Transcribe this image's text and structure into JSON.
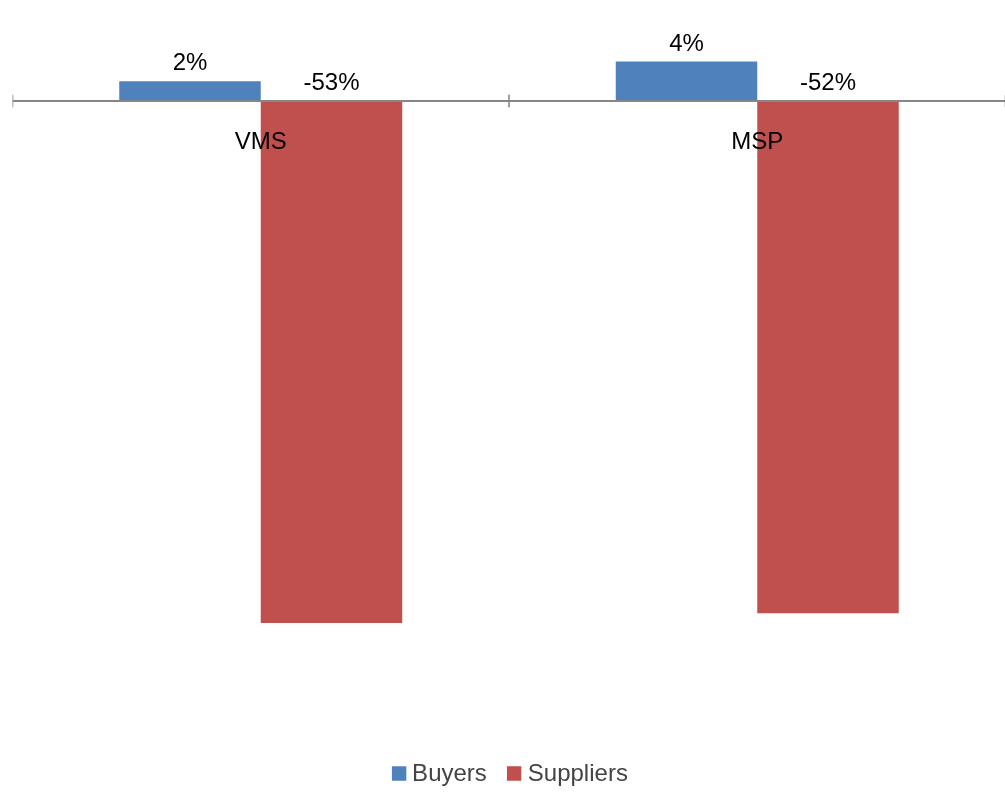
{
  "chart_data": {
    "type": "bar",
    "categories": [
      "VMS",
      "MSP"
    ],
    "series": [
      {
        "name": "Buyers",
        "color": "#4f81bd",
        "values": [
          2,
          4
        ],
        "value_labels": [
          "2%",
          "4%"
        ]
      },
      {
        "name": "Suppliers",
        "color": "#c0504d",
        "values": [
          -53,
          -52
        ],
        "value_labels": [
          "-53%",
          "-52%"
        ]
      }
    ],
    "legend": "bottom",
    "grid": false
  }
}
